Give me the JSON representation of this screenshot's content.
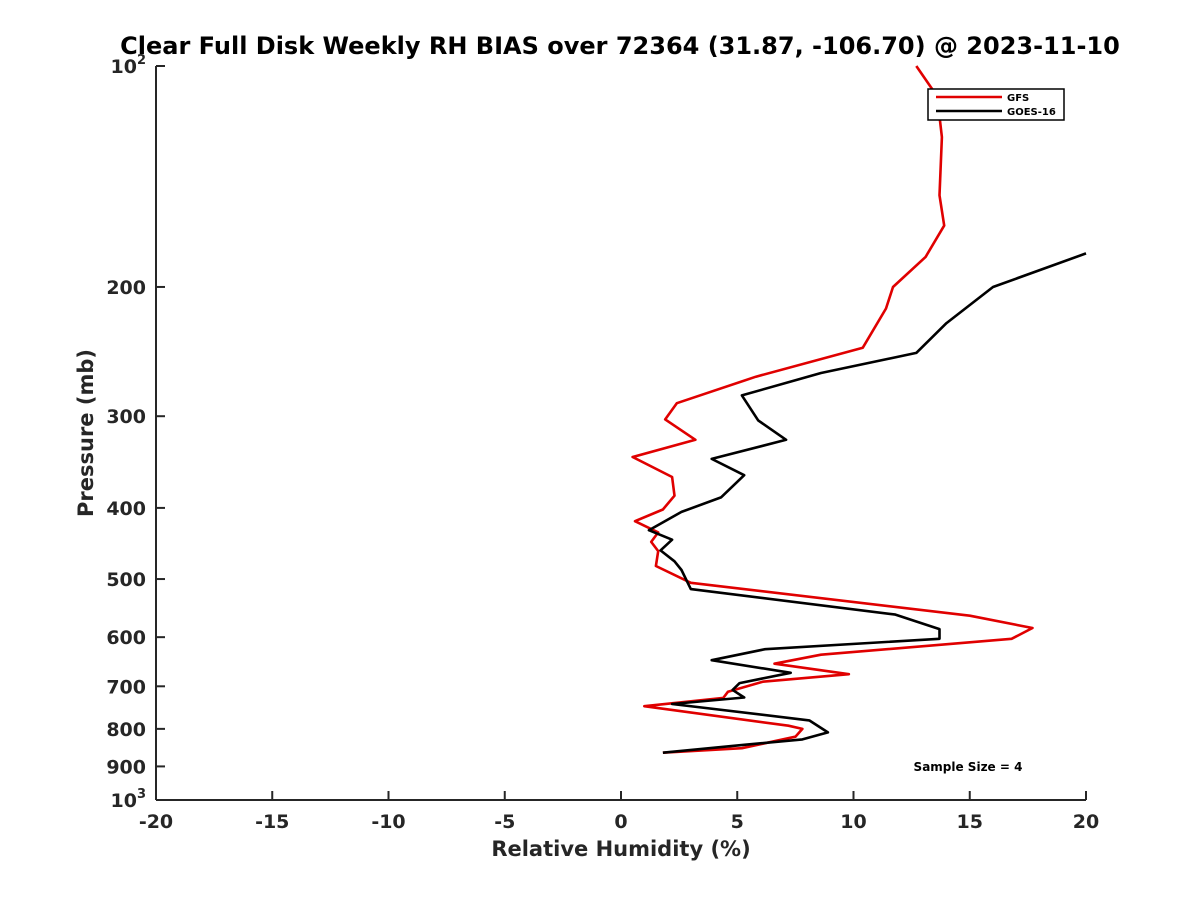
{
  "chart_data": {
    "type": "line",
    "title": "Clear Full Disk Weekly RH BIAS over 72364 (31.87, -106.70) @ 2023-11-10",
    "xlabel": "Relative Humidity (%)",
    "ylabel": "Pressure (mb)",
    "xlim": [
      -20,
      20
    ],
    "ylim": [
      100,
      1000
    ],
    "y_scale": "log",
    "y_reversed": true,
    "grid": false,
    "legend_position": "top-right",
    "x_ticks": [
      -20,
      -15,
      -10,
      -5,
      0,
      5,
      10,
      15,
      20
    ],
    "y_ticks": [
      {
        "value": 100,
        "label": "10",
        "exp": "2"
      },
      {
        "value": 200,
        "label": "200"
      },
      {
        "value": 300,
        "label": "300"
      },
      {
        "value": 400,
        "label": "400"
      },
      {
        "value": 500,
        "label": "500"
      },
      {
        "value": 600,
        "label": "600"
      },
      {
        "value": 700,
        "label": "700"
      },
      {
        "value": 800,
        "label": "800"
      },
      {
        "value": 900,
        "label": "900"
      },
      {
        "value": 1000,
        "label": "10",
        "exp": "3"
      }
    ],
    "series": [
      {
        "name": "GFS",
        "color": "#e00000",
        "points": [
          [
            12.7,
            100
          ],
          [
            13.6,
            110
          ],
          [
            13.8,
            125
          ],
          [
            13.7,
            150
          ],
          [
            13.9,
            165
          ],
          [
            13.1,
            182
          ],
          [
            11.7,
            200
          ],
          [
            11.4,
            214
          ],
          [
            10.4,
            242
          ],
          [
            5.8,
            265
          ],
          [
            2.4,
            288
          ],
          [
            1.9,
            303
          ],
          [
            3.2,
            323
          ],
          [
            0.5,
            341
          ],
          [
            2.2,
            363
          ],
          [
            2.3,
            385
          ],
          [
            1.8,
            402
          ],
          [
            0.6,
            417
          ],
          [
            1.6,
            432
          ],
          [
            1.3,
            445
          ],
          [
            1.6,
            458
          ],
          [
            1.5,
            480
          ],
          [
            3.0,
            506
          ],
          [
            15.0,
            561
          ],
          [
            17.7,
            583
          ],
          [
            16.8,
            603
          ],
          [
            8.6,
            634
          ],
          [
            6.6,
            652
          ],
          [
            9.8,
            674
          ],
          [
            6.1,
            690
          ],
          [
            4.6,
            712
          ],
          [
            4.4,
            726
          ],
          [
            1.0,
            745
          ],
          [
            7.2,
            792
          ],
          [
            7.8,
            800
          ],
          [
            7.5,
            820
          ],
          [
            5.2,
            850
          ],
          [
            1.8,
            862
          ]
        ]
      },
      {
        "name": "GOES-16",
        "color": "#000000",
        "points": [
          [
            20.0,
            180
          ],
          [
            16.0,
            200
          ],
          [
            14.0,
            224
          ],
          [
            12.7,
            246
          ],
          [
            8.6,
            262
          ],
          [
            5.2,
            281
          ],
          [
            5.9,
            304
          ],
          [
            7.1,
            323
          ],
          [
            3.9,
            343
          ],
          [
            5.3,
            361
          ],
          [
            4.3,
            387
          ],
          [
            2.6,
            405
          ],
          [
            1.2,
            429
          ],
          [
            2.2,
            442
          ],
          [
            1.7,
            457
          ],
          [
            2.3,
            473
          ],
          [
            2.6,
            486
          ],
          [
            3.0,
            516
          ],
          [
            11.8,
            559
          ],
          [
            13.7,
            585
          ],
          [
            13.7,
            603
          ],
          [
            6.2,
            623
          ],
          [
            3.9,
            645
          ],
          [
            7.3,
            671
          ],
          [
            5.1,
            693
          ],
          [
            4.8,
            708
          ],
          [
            5.3,
            725
          ],
          [
            2.2,
            740
          ],
          [
            8.1,
            779
          ],
          [
            8.9,
            809
          ],
          [
            7.8,
            827
          ],
          [
            5.3,
            841
          ],
          [
            1.8,
            862
          ]
        ]
      }
    ],
    "annotation": "Sample Size = 4"
  }
}
